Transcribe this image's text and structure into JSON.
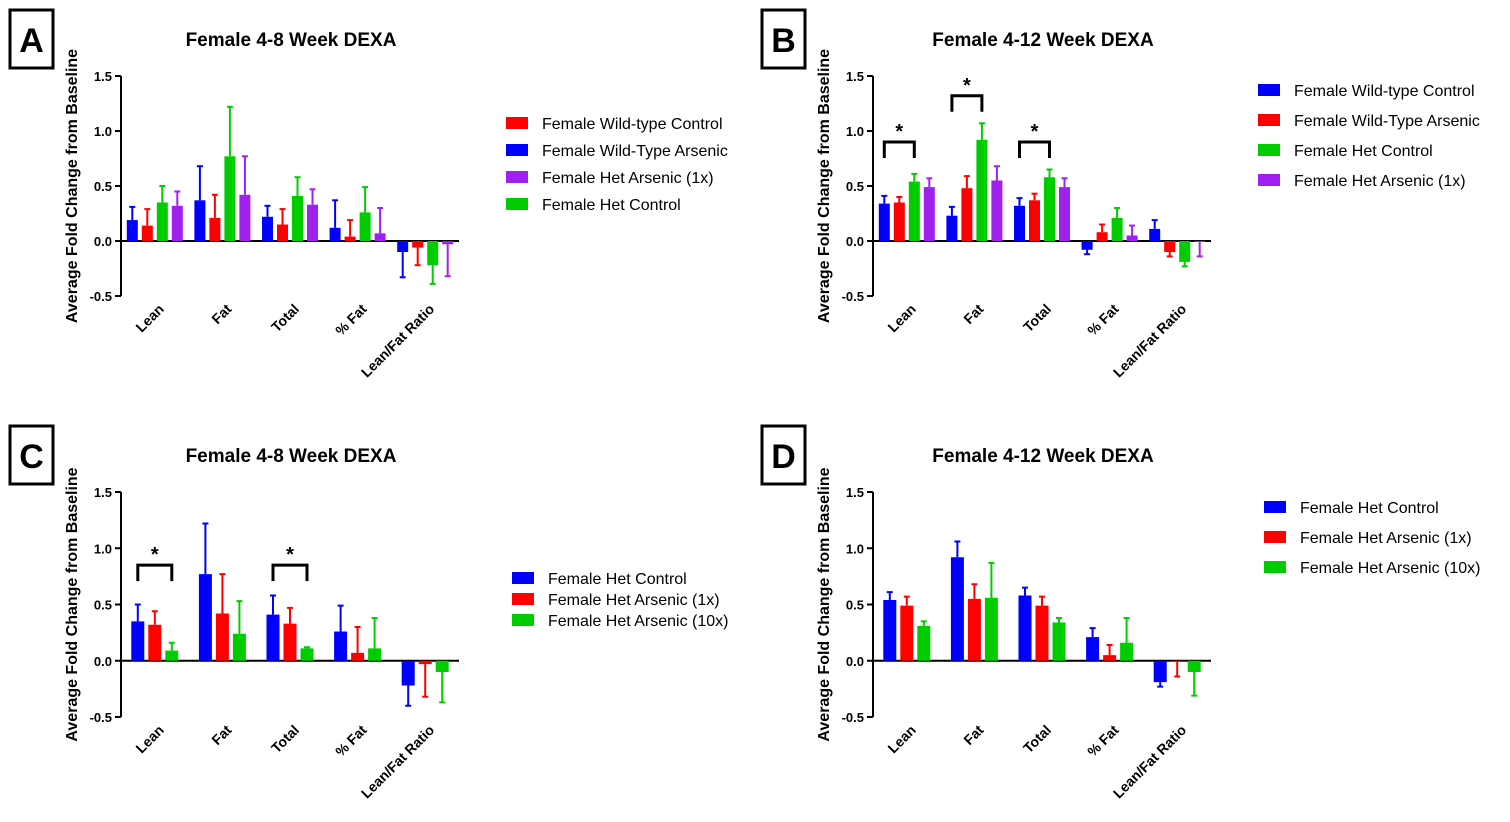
{
  "colors": {
    "blue": "#0000ff",
    "red": "#ff0000",
    "green": "#00cc00",
    "purple": "#a020f0"
  },
  "chart_data": [
    {
      "panel": "A",
      "type": "bar",
      "title": "Female 4-8 Week DEXA",
      "ylabel": "Average Fold Change from Baseline",
      "ylim": [
        -0.5,
        1.5
      ],
      "yticks": [
        "1.5",
        "1.0",
        "0.5",
        "0.0",
        "-0.5"
      ],
      "categories": [
        "Lean",
        "Fat",
        "Total",
        "% Fat",
        "Lean/Fat Ratio"
      ],
      "series": [
        {
          "color": "#0000ff",
          "values": [
            0.19,
            0.37,
            0.22,
            0.12,
            -0.1
          ],
          "errors": [
            0.12,
            0.31,
            0.1,
            0.25,
            0.23
          ]
        },
        {
          "color": "#ff0000",
          "values": [
            0.14,
            0.21,
            0.15,
            0.04,
            -0.06
          ],
          "errors": [
            0.15,
            0.21,
            0.14,
            0.15,
            0.16
          ]
        },
        {
          "color": "#00cc00",
          "values": [
            0.35,
            0.77,
            0.41,
            0.26,
            -0.22
          ],
          "errors": [
            0.15,
            0.45,
            0.17,
            0.23,
            0.17
          ]
        },
        {
          "color": "#a020f0",
          "values": [
            0.32,
            0.42,
            0.33,
            0.07,
            -0.03
          ],
          "errors": [
            0.13,
            0.35,
            0.14,
            0.23,
            0.29
          ]
        }
      ],
      "legend": [
        {
          "name": "Female Wild-type Control",
          "color": "#ff0000"
        },
        {
          "name": "Female Wild-Type Arsenic",
          "color": "#0000ff"
        },
        {
          "name": "Female Het Arsenic (1x)",
          "color": "#a020f0"
        },
        {
          "name": "Female Het Control",
          "color": "#00cc00"
        }
      ],
      "legend_placement": "right",
      "significance": []
    },
    {
      "panel": "B",
      "type": "bar",
      "title": "Female 4-12 Week DEXA",
      "ylabel": "Average Fold Change from Baseline",
      "ylim": [
        -0.5,
        1.5
      ],
      "yticks": [
        "1.5",
        "1.0",
        "0.5",
        "0.0",
        "-0.5"
      ],
      "categories": [
        "Lean",
        "Fat",
        "Total",
        "% Fat",
        "Lean/Fat Ratio"
      ],
      "series": [
        {
          "color": "#0000ff",
          "values": [
            0.34,
            0.23,
            0.32,
            -0.08,
            0.11
          ],
          "errors": [
            0.07,
            0.08,
            0.07,
            0.04,
            0.08
          ]
        },
        {
          "color": "#ff0000",
          "values": [
            0.35,
            0.48,
            0.37,
            0.08,
            -0.1
          ],
          "errors": [
            0.05,
            0.11,
            0.06,
            0.07,
            0.04
          ]
        },
        {
          "color": "#00cc00",
          "values": [
            0.54,
            0.92,
            0.58,
            0.21,
            -0.19
          ],
          "errors": [
            0.07,
            0.15,
            0.07,
            0.09,
            0.04
          ]
        },
        {
          "color": "#a020f0",
          "values": [
            0.49,
            0.55,
            0.49,
            0.05,
            -0.01
          ],
          "errors": [
            0.08,
            0.13,
            0.08,
            0.09,
            0.13
          ]
        }
      ],
      "legend": [
        {
          "name": "Female Wild-type Control",
          "color": "#0000ff"
        },
        {
          "name": "Female Wild-Type Arsenic",
          "color": "#ff0000"
        },
        {
          "name": "Female Het Control",
          "color": "#00cc00"
        },
        {
          "name": "Female Het Arsenic (1x)",
          "color": "#a020f0"
        }
      ],
      "legend_placement": "right",
      "significance": [
        {
          "category": 0,
          "from": 0,
          "to": 2,
          "y": 0.9,
          "label": "*"
        },
        {
          "category": 1,
          "from": 0,
          "to": 2,
          "y": 1.32,
          "label": "*"
        },
        {
          "category": 2,
          "from": 0,
          "to": 2,
          "y": 0.9,
          "label": "*"
        }
      ]
    },
    {
      "panel": "C",
      "type": "bar",
      "title": "Female 4-8 Week DEXA",
      "ylabel": "Average Fold Change from Baseline",
      "ylim": [
        -0.5,
        1.5
      ],
      "yticks": [
        "1.5",
        "1.0",
        "0.5",
        "0.0",
        "-0.5"
      ],
      "categories": [
        "Lean",
        "Fat",
        "Total",
        "% Fat",
        "Lean/Fat Ratio"
      ],
      "series": [
        {
          "color": "#0000ff",
          "values": [
            0.35,
            0.77,
            0.41,
            0.26,
            -0.22
          ],
          "errors": [
            0.15,
            0.45,
            0.17,
            0.23,
            0.18
          ]
        },
        {
          "color": "#ff0000",
          "values": [
            0.32,
            0.42,
            0.33,
            0.07,
            -0.03
          ],
          "errors": [
            0.12,
            0.35,
            0.14,
            0.23,
            0.29
          ]
        },
        {
          "color": "#00cc00",
          "values": [
            0.09,
            0.24,
            0.11,
            0.11,
            -0.1
          ],
          "errors": [
            0.07,
            0.29,
            0.01,
            0.27,
            0.27
          ]
        }
      ],
      "legend": [
        {
          "name": "Female Het Control",
          "color": "#0000ff"
        },
        {
          "name": "Female Het Arsenic (1x)",
          "color": "#ff0000"
        },
        {
          "name": "Female Het Arsenic (10x)",
          "color": "#00cc00"
        }
      ],
      "legend_placement": "right",
      "significance": [
        {
          "category": 0,
          "from": 0,
          "to": 2,
          "y": 0.85,
          "label": "*"
        },
        {
          "category": 2,
          "from": 0,
          "to": 2,
          "y": 0.85,
          "label": "*"
        }
      ]
    },
    {
      "panel": "D",
      "type": "bar",
      "title": "Female 4-12 Week DEXA",
      "ylabel": "Average Fold Change from Baseline",
      "ylim": [
        -0.5,
        1.5
      ],
      "yticks": [
        "1.5",
        "1.0",
        "0.5",
        "0.0",
        "-0.5"
      ],
      "categories": [
        "Lean",
        "Fat",
        "Total",
        "% Fat",
        "Lean/Fat Ratio"
      ],
      "series": [
        {
          "color": "#0000ff",
          "values": [
            0.54,
            0.92,
            0.58,
            0.21,
            -0.19
          ],
          "errors": [
            0.07,
            0.14,
            0.07,
            0.08,
            0.04
          ]
        },
        {
          "color": "#ff0000",
          "values": [
            0.49,
            0.55,
            0.49,
            0.05,
            -0.01
          ],
          "errors": [
            0.08,
            0.13,
            0.08,
            0.09,
            0.13
          ]
        },
        {
          "color": "#00cc00",
          "values": [
            0.31,
            0.56,
            0.34,
            0.16,
            -0.1
          ],
          "errors": [
            0.04,
            0.31,
            0.04,
            0.22,
            0.21
          ]
        }
      ],
      "legend": [
        {
          "name": "Female Het Control",
          "color": "#0000ff"
        },
        {
          "name": "Female Het Arsenic (1x)",
          "color": "#ff0000"
        },
        {
          "name": "Female Het Arsenic (10x)",
          "color": "#00cc00"
        }
      ],
      "legend_placement": "right",
      "significance": []
    }
  ]
}
